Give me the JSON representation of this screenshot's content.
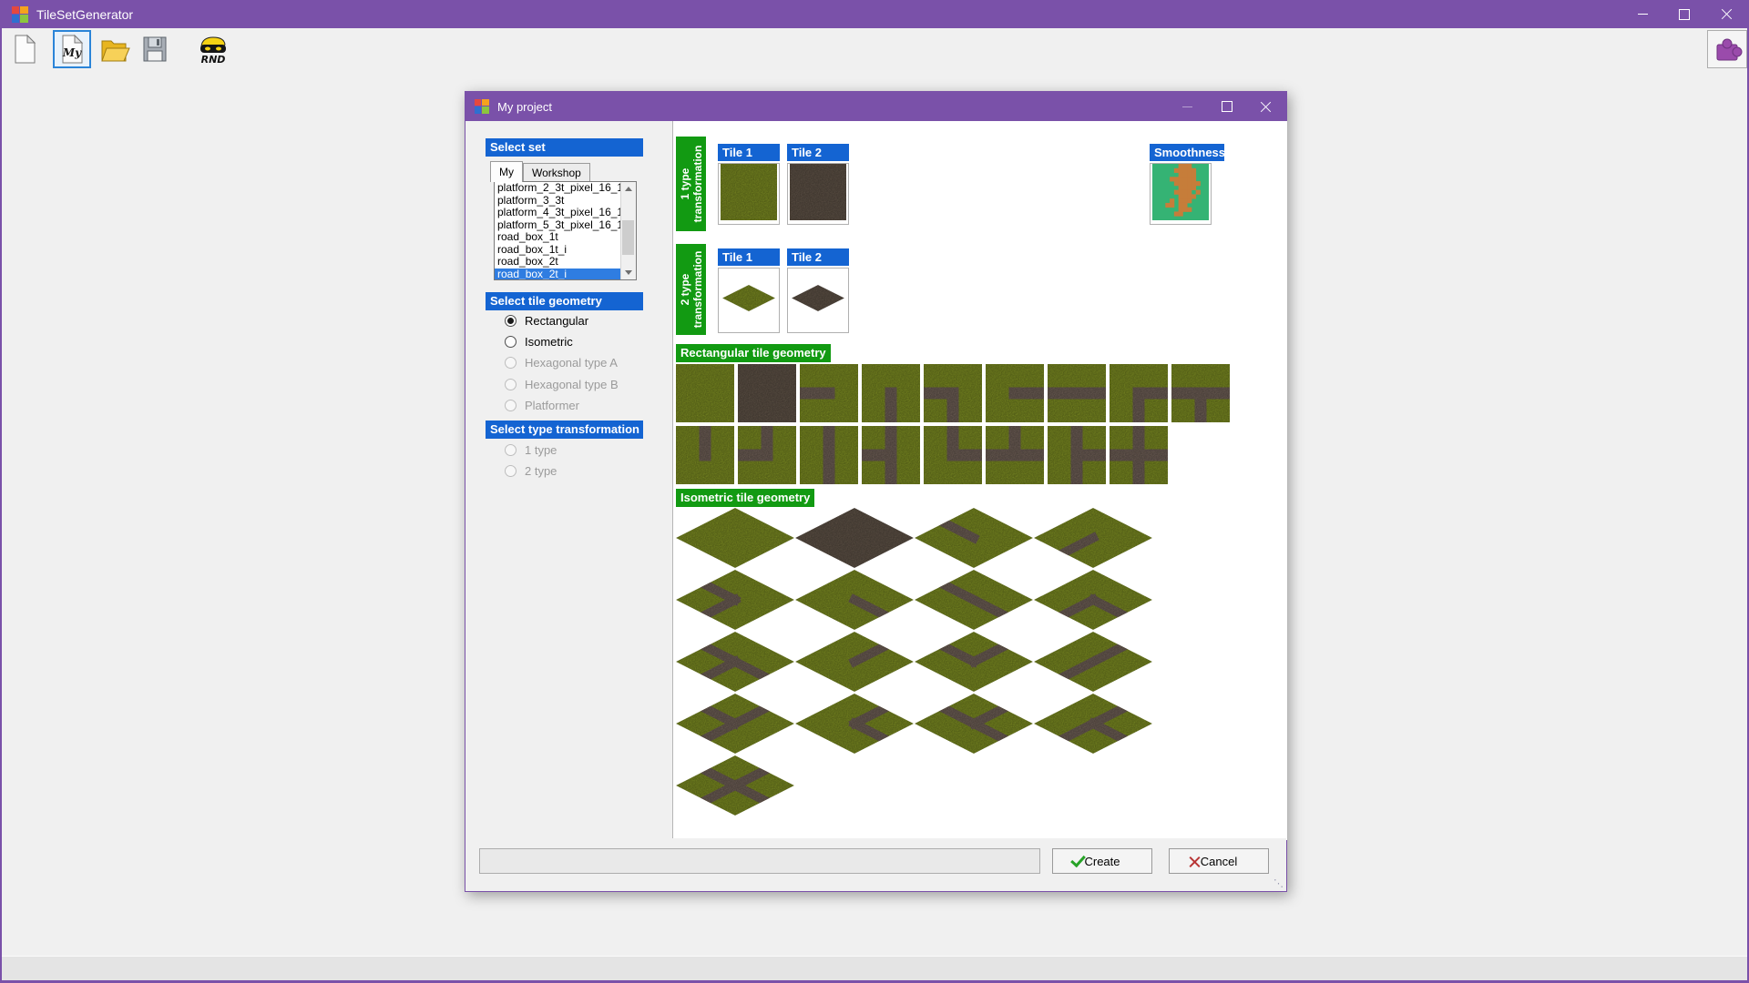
{
  "colors": {
    "accent_purple": "#7a51a9",
    "header_blue": "#1464d2",
    "selection_blue": "#2f7de1",
    "section_green": "#129a12",
    "tile_grass": "#8a9c26",
    "tile_dirt": "#6a5c4f",
    "tile_road": "#7b6a60",
    "smooth_green": "#35b374",
    "smooth_orange": "#c67d3a"
  },
  "window": {
    "title": "TileSetGenerator",
    "toolbar": {
      "my_doc_label": "My",
      "rnd_label": "RND",
      "icons": [
        "new-file",
        "my-project-file",
        "open-folder",
        "save-file",
        "random-set",
        "puzzle-plugin"
      ]
    }
  },
  "dialog": {
    "title": "My project",
    "select_set": {
      "header": "Select set",
      "tabs": [
        {
          "label": "My",
          "active": true
        },
        {
          "label": "Workshop",
          "active": false
        }
      ],
      "items": [
        "platform_2_3t_pixel_16_1",
        "platform_3_3t",
        "platform_4_3t_pixel_16_1",
        "platform_5_3t_pixel_16_1",
        "road_box_1t",
        "road_box_1t_i",
        "road_box_2t",
        "road_box_2t_i"
      ],
      "selected_item": "road_box_2t_i"
    },
    "geometry": {
      "header": "Select tile geometry",
      "options": [
        {
          "label": "Rectangular",
          "checked": true,
          "enabled": true
        },
        {
          "label": "Isometric",
          "checked": false,
          "enabled": true
        },
        {
          "label": "Hexagonal type A",
          "checked": false,
          "enabled": false
        },
        {
          "label": "Hexagonal type B",
          "checked": false,
          "enabled": false
        },
        {
          "label": "Platformer",
          "checked": false,
          "enabled": false
        }
      ]
    },
    "transformation": {
      "header": "Select type transformation",
      "options": [
        {
          "label": "1 type",
          "checked": false,
          "enabled": false
        },
        {
          "label": "2 type",
          "checked": false,
          "enabled": false
        }
      ]
    },
    "preview": {
      "one_type": {
        "label_lines": [
          "1 type",
          "transformation"
        ],
        "tile1": "Tile 1",
        "tile2": "Tile 2",
        "smoothness": "Smoothness"
      },
      "two_type": {
        "label_lines": [
          "2 type",
          "transformation"
        ],
        "tile1": "Tile 1",
        "tile2": "Tile 2"
      },
      "rect_header": "Rectangular tile geometry",
      "iso_header": "Isometric tile geometry",
      "rect_rows": [
        [
          "grass",
          "dirt",
          "L",
          "B",
          "LB",
          "R",
          "LR",
          "RB",
          "LRB"
        ],
        [
          "T",
          "TL",
          "TB",
          "TBL",
          "TR",
          "TLR",
          "TBR",
          "TBLR"
        ]
      ],
      "iso_rows": [
        [
          "grass",
          "dirt",
          "L",
          "B"
        ],
        [
          "LB",
          "R",
          "LR",
          "RB"
        ],
        [
          "LRB",
          "T",
          "TL",
          "TB"
        ],
        [
          "TBL",
          "TR",
          "TLR",
          "TBR"
        ],
        [
          "TBLR"
        ]
      ]
    },
    "footer": {
      "input_value": "",
      "create_label": "Create",
      "cancel_label": "Cancel"
    }
  }
}
